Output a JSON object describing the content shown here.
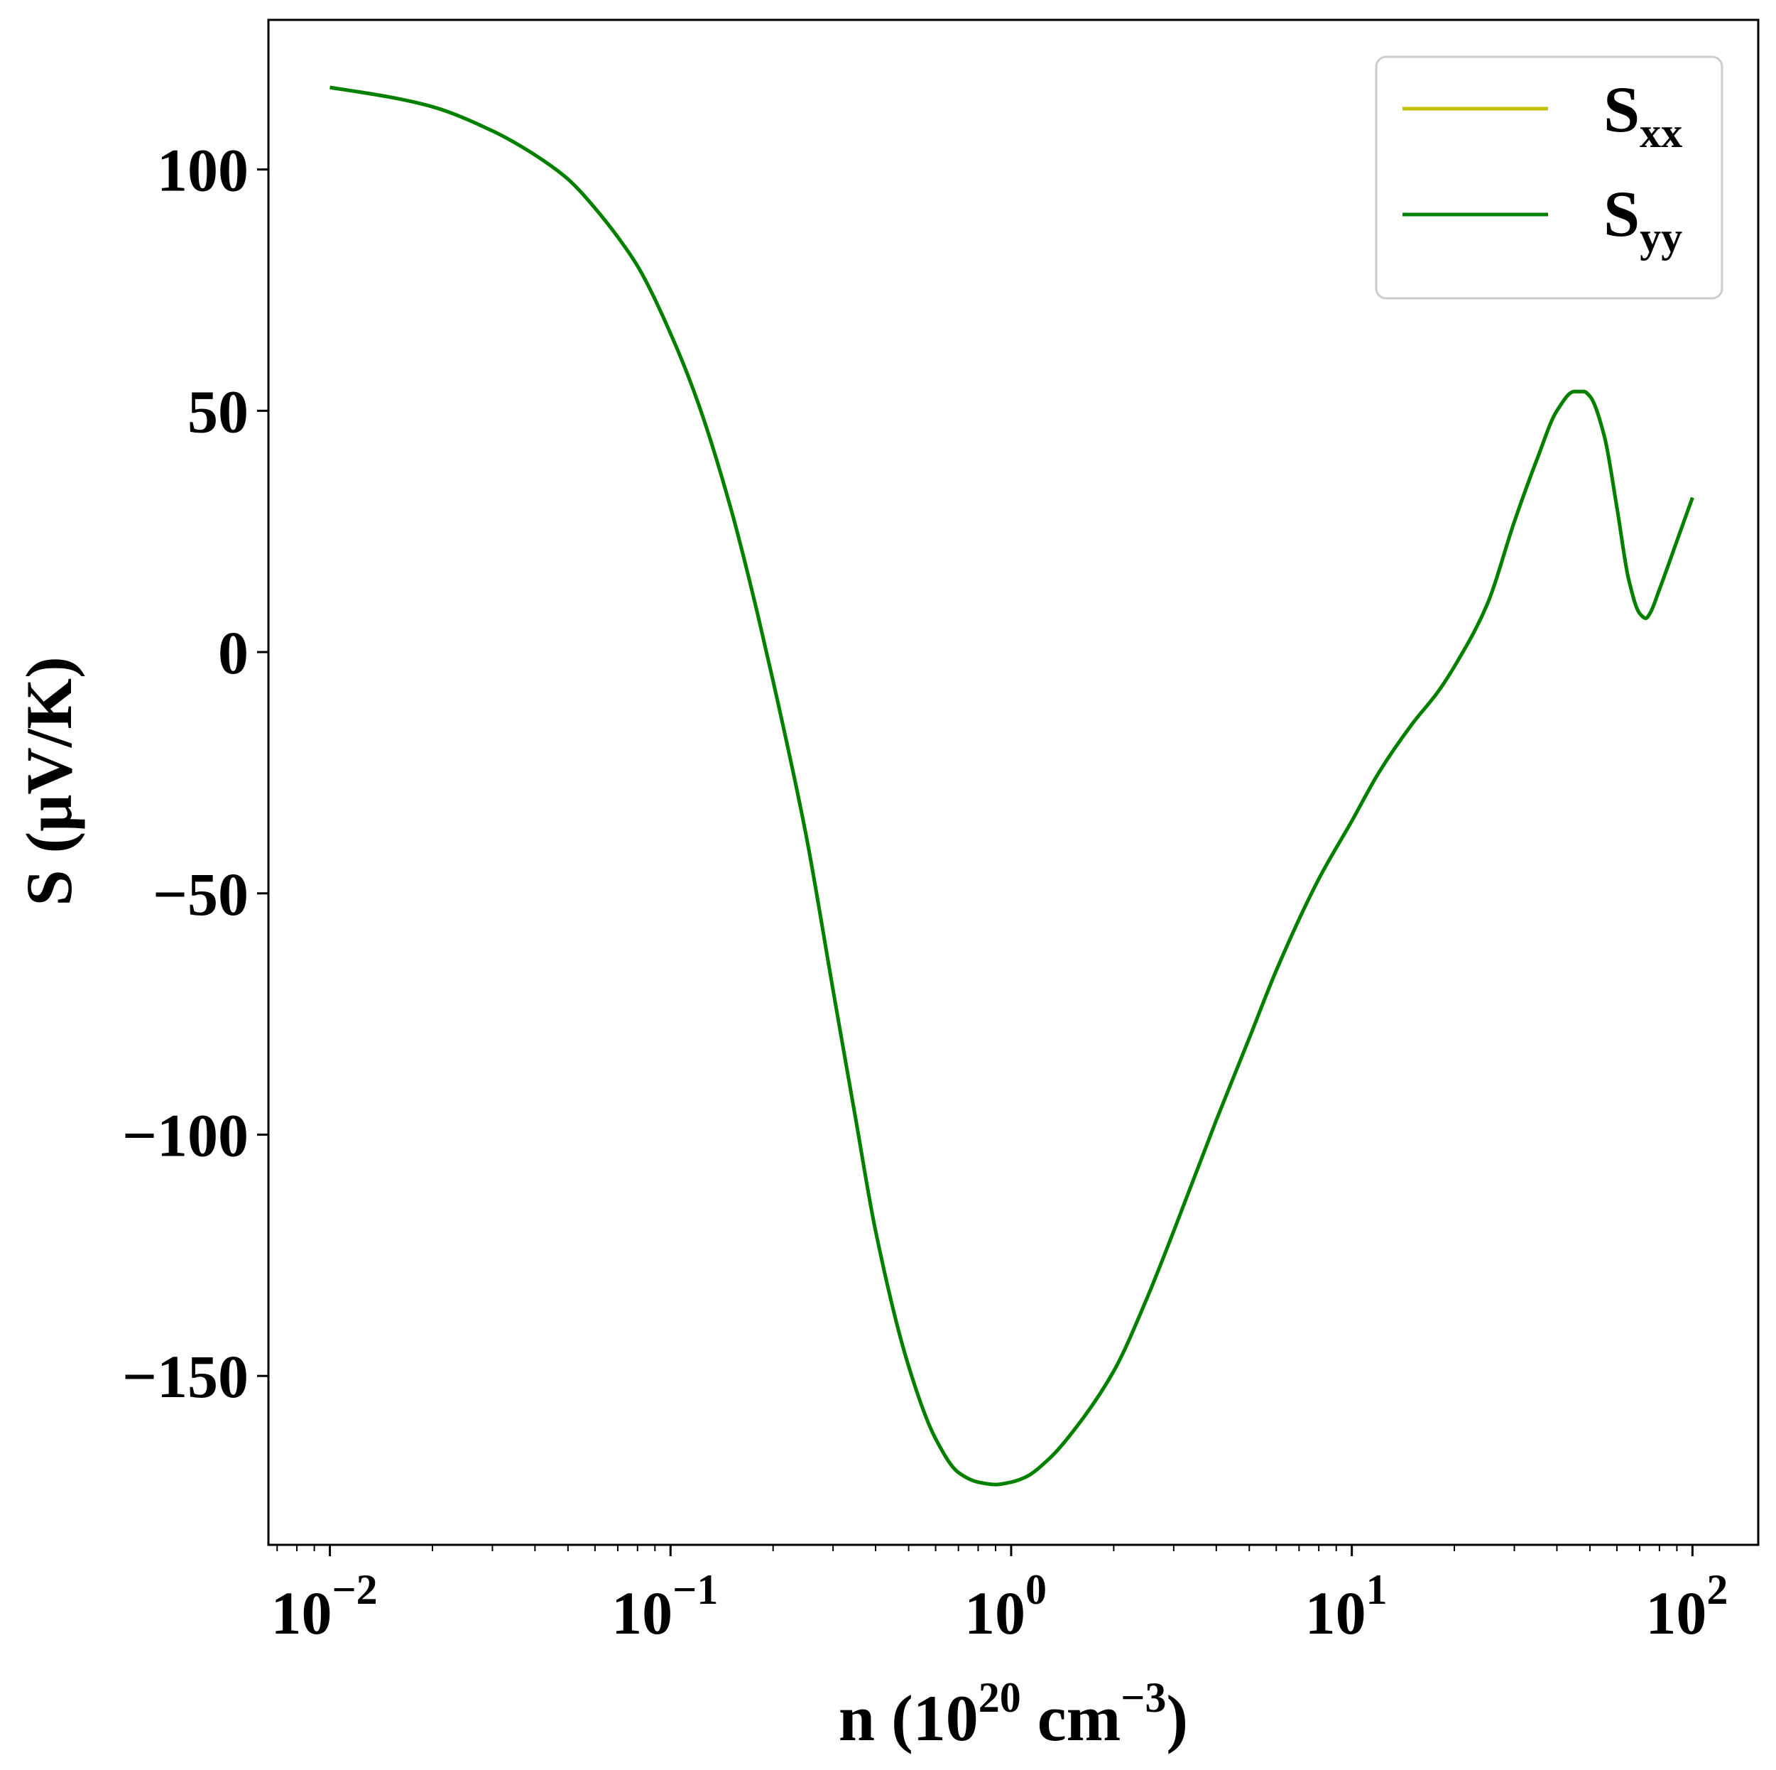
{
  "chart_data": {
    "type": "line",
    "xlabel": {
      "base": "n (10",
      "exp1": "20",
      "mid": " cm",
      "exp2": "−3",
      "end": ")"
    },
    "ylabel": "S (μV/K)",
    "xscale": "log",
    "xlim": [
      0.0066,
      156
    ],
    "ylim": [
      -185,
      131
    ],
    "legend_position": "top-right",
    "grid": false,
    "x_ticks": [
      {
        "value": 0.01,
        "base": "10",
        "exp": "−2"
      },
      {
        "value": 0.1,
        "base": "10",
        "exp": "−1"
      },
      {
        "value": 1,
        "base": "10",
        "exp": "0"
      },
      {
        "value": 10,
        "base": "10",
        "exp": "1"
      },
      {
        "value": 100,
        "base": "10",
        "exp": "2"
      }
    ],
    "y_ticks": [
      {
        "value": 100,
        "label": "100"
      },
      {
        "value": 50,
        "label": "50"
      },
      {
        "value": 0,
        "label": "0"
      },
      {
        "value": -50,
        "label": "−50"
      },
      {
        "value": -100,
        "label": "−100"
      },
      {
        "value": -150,
        "label": "−150"
      }
    ],
    "series": [
      {
        "name": "S",
        "name_sub": "xx",
        "color": "#bfbf00",
        "x": [
          0.01,
          0.015,
          0.02,
          0.03,
          0.04,
          0.05,
          0.06,
          0.07,
          0.08,
          0.1,
          0.12,
          0.15,
          0.18,
          0.2,
          0.25,
          0.3,
          0.35,
          0.4,
          0.5,
          0.6,
          0.7,
          0.8,
          0.9,
          1.0,
          1.1,
          1.3,
          1.5,
          2,
          2.5,
          3,
          4,
          5,
          6,
          8,
          10,
          12,
          15,
          18,
          20,
          25,
          30,
          35,
          40,
          45,
          48,
          50,
          55,
          60,
          65,
          70,
          73,
          75,
          80,
          90,
          100
        ],
        "y": [
          117,
          115,
          113,
          108,
          103,
          98,
          92,
          86,
          80,
          66,
          52,
          30,
          8,
          -6,
          -38,
          -70,
          -97,
          -120,
          -148,
          -163,
          -170,
          -172,
          -172.5,
          -172,
          -171,
          -167,
          -162,
          -149,
          -134,
          -120,
          -97,
          -80,
          -66,
          -47,
          -35,
          -25,
          -15,
          -8,
          -3,
          10,
          27,
          40,
          50,
          54,
          54,
          53,
          45,
          30,
          15,
          8,
          7,
          8,
          13,
          23,
          32
        ]
      },
      {
        "name": "S",
        "name_sub": "yy",
        "color": "#008000",
        "x": [
          0.01,
          0.015,
          0.02,
          0.03,
          0.04,
          0.05,
          0.06,
          0.07,
          0.08,
          0.1,
          0.12,
          0.15,
          0.18,
          0.2,
          0.25,
          0.3,
          0.35,
          0.4,
          0.5,
          0.6,
          0.7,
          0.8,
          0.9,
          1.0,
          1.1,
          1.3,
          1.5,
          2,
          2.5,
          3,
          4,
          5,
          6,
          8,
          10,
          12,
          15,
          18,
          20,
          25,
          30,
          35,
          40,
          45,
          48,
          50,
          55,
          60,
          65,
          70,
          73,
          75,
          80,
          90,
          100
        ],
        "y": [
          117,
          115,
          113,
          108,
          103,
          98,
          92,
          86,
          80,
          66,
          52,
          30,
          8,
          -6,
          -38,
          -70,
          -97,
          -120,
          -148,
          -163,
          -170,
          -172,
          -172.5,
          -172,
          -171,
          -167,
          -162,
          -149,
          -134,
          -120,
          -97,
          -80,
          -66,
          -47,
          -35,
          -25,
          -15,
          -8,
          -3,
          10,
          27,
          40,
          50,
          54,
          54,
          53,
          45,
          30,
          15,
          8,
          7,
          8,
          13,
          23,
          32
        ]
      }
    ]
  }
}
